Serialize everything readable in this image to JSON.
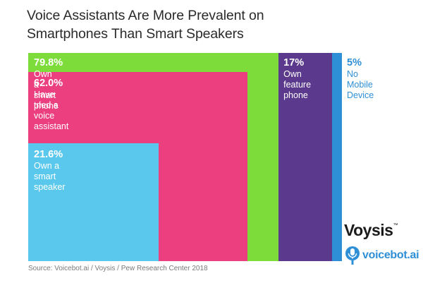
{
  "chart_data": {
    "type": "nested-area",
    "title": "Voice Assistants Are More Prevalent on Smartphones Than Smart Speakers",
    "title_lines": [
      "Voice Assistants Are More Prevalent on",
      "Smartphones Than Smart Speakers"
    ],
    "series": [
      {
        "name": "Own a smart phone",
        "value": 79.8,
        "value_label": "79.8%",
        "label_lines": [
          "Own a smart phone"
        ],
        "color": "#7ddc3a"
      },
      {
        "name": "Have tried a voice assistant",
        "value": 62.0,
        "value_label": "62.0%",
        "label_lines": [
          "Have tried a voice assistant"
        ],
        "color": "#eb3f7f"
      },
      {
        "name": "Own a smart speaker",
        "value": 21.6,
        "value_label": "21.6%",
        "label_lines": [
          "Own a smart speaker"
        ],
        "color": "#5ac8ec"
      },
      {
        "name": "Own feature phone",
        "value": 17,
        "value_label": "17%",
        "label_lines": [
          "Own",
          "feature",
          "phone"
        ],
        "color": "#5b3a8e"
      },
      {
        "name": "No Mobile Device",
        "value": 5,
        "value_label": "5%",
        "label_lines": [
          "No",
          "Mobile",
          "Device"
        ],
        "color": "#2f8fd6"
      }
    ],
    "source": "Source: Voicebot.ai / Voysis / Pew Research Center 2018"
  },
  "logos": {
    "voysis": "Voysis",
    "voysis_mark": "™",
    "voicebot": "voicebot.ai"
  }
}
